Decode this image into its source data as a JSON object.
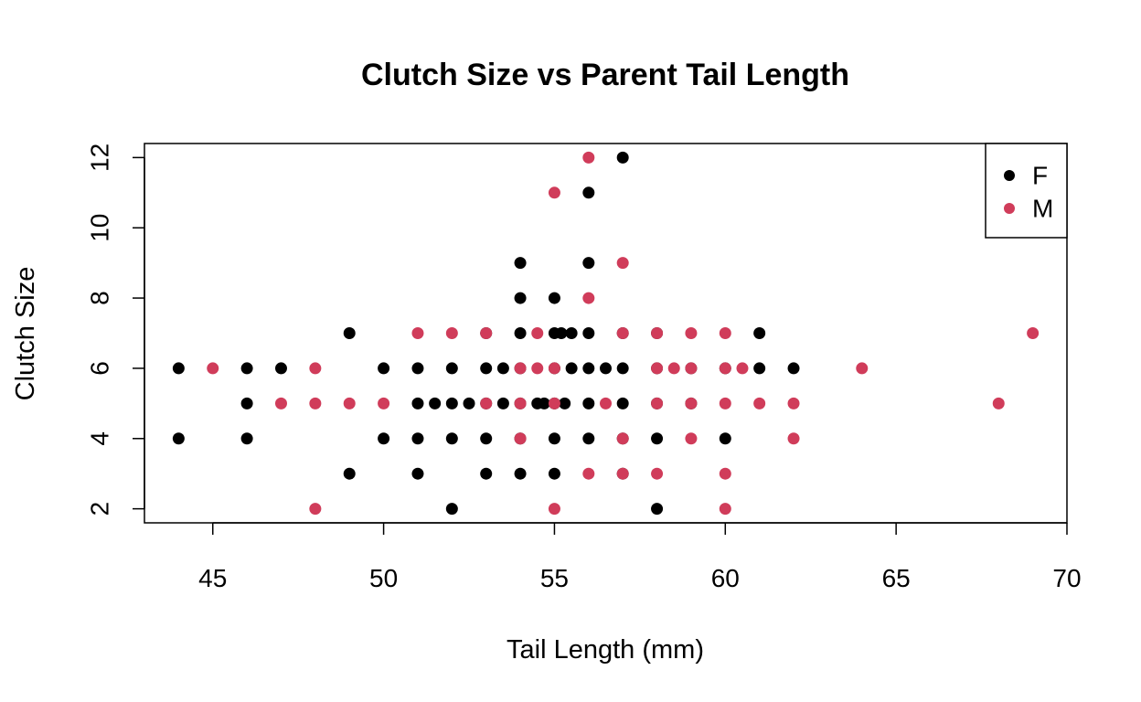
{
  "chart_data": {
    "type": "scatter",
    "title": "Clutch Size vs Parent Tail Length",
    "xlabel": "Tail Length (mm)",
    "ylabel": "Clutch Size",
    "xlim": [
      43,
      70
    ],
    "ylim": [
      1.6,
      12.4
    ],
    "xticks": [
      45,
      50,
      55,
      60,
      65,
      70
    ],
    "yticks": [
      2,
      4,
      6,
      8,
      10,
      12
    ],
    "grid": false,
    "legend_position": "top-right",
    "series": [
      {
        "name": "F",
        "color": "#000000",
        "points": [
          [
            44,
            6
          ],
          [
            44,
            4
          ],
          [
            46,
            6
          ],
          [
            46,
            5
          ],
          [
            46,
            4
          ],
          [
            47,
            6
          ],
          [
            49,
            7
          ],
          [
            49,
            3
          ],
          [
            50,
            6
          ],
          [
            50,
            4
          ],
          [
            51,
            6
          ],
          [
            51,
            5
          ],
          [
            51,
            4
          ],
          [
            51,
            3
          ],
          [
            51.5,
            5
          ],
          [
            52,
            6
          ],
          [
            52,
            5
          ],
          [
            52,
            4
          ],
          [
            52,
            2
          ],
          [
            52.5,
            5
          ],
          [
            53,
            7
          ],
          [
            53,
            6
          ],
          [
            53,
            5
          ],
          [
            53,
            4
          ],
          [
            53,
            3
          ],
          [
            53.5,
            6
          ],
          [
            53.5,
            5
          ],
          [
            54,
            9
          ],
          [
            54,
            8
          ],
          [
            54,
            7
          ],
          [
            54,
            6
          ],
          [
            54,
            5
          ],
          [
            54,
            4
          ],
          [
            54,
            3
          ],
          [
            54.5,
            5
          ],
          [
            54.7,
            5
          ],
          [
            55,
            8
          ],
          [
            55,
            7
          ],
          [
            55,
            6
          ],
          [
            55,
            5
          ],
          [
            55,
            4
          ],
          [
            55,
            3
          ],
          [
            55.2,
            7
          ],
          [
            55.3,
            5
          ],
          [
            55.5,
            7
          ],
          [
            55.5,
            6
          ],
          [
            56,
            11
          ],
          [
            56,
            9
          ],
          [
            56,
            7
          ],
          [
            56,
            6
          ],
          [
            56,
            5
          ],
          [
            56,
            4
          ],
          [
            56.5,
            6
          ],
          [
            57,
            12
          ],
          [
            57,
            7
          ],
          [
            57,
            6
          ],
          [
            57,
            5
          ],
          [
            57,
            4
          ],
          [
            57,
            3
          ],
          [
            58,
            7
          ],
          [
            58,
            6
          ],
          [
            58,
            5
          ],
          [
            58,
            4
          ],
          [
            58,
            2
          ],
          [
            59,
            6
          ],
          [
            59,
            5
          ],
          [
            60,
            6
          ],
          [
            60,
            4
          ],
          [
            61,
            7
          ],
          [
            61,
            6
          ],
          [
            62,
            6
          ]
        ]
      },
      {
        "name": "M",
        "color": "#d03c5a",
        "points": [
          [
            45,
            6
          ],
          [
            47,
            5
          ],
          [
            48,
            6
          ],
          [
            48,
            5
          ],
          [
            48,
            2
          ],
          [
            49,
            5
          ],
          [
            50,
            5
          ],
          [
            51,
            7
          ],
          [
            52,
            7
          ],
          [
            53,
            7
          ],
          [
            53,
            5
          ],
          [
            54,
            6
          ],
          [
            54,
            5
          ],
          [
            54,
            4
          ],
          [
            54.5,
            7
          ],
          [
            54.5,
            6
          ],
          [
            55,
            11
          ],
          [
            55,
            6
          ],
          [
            55,
            5
          ],
          [
            55,
            2
          ],
          [
            56,
            12
          ],
          [
            56,
            8
          ],
          [
            56,
            3
          ],
          [
            56.5,
            5
          ],
          [
            57,
            9
          ],
          [
            57,
            7
          ],
          [
            57,
            4
          ],
          [
            57,
            3
          ],
          [
            58,
            7
          ],
          [
            58,
            6
          ],
          [
            58,
            5
          ],
          [
            58,
            3
          ],
          [
            58.5,
            6
          ],
          [
            59,
            7
          ],
          [
            59,
            6
          ],
          [
            59,
            5
          ],
          [
            59,
            4
          ],
          [
            60,
            7
          ],
          [
            60,
            6
          ],
          [
            60,
            5
          ],
          [
            60,
            3
          ],
          [
            60,
            2
          ],
          [
            60.5,
            6
          ],
          [
            61,
            5
          ],
          [
            62,
            5
          ],
          [
            62,
            4
          ],
          [
            64,
            6
          ],
          [
            68,
            5
          ],
          [
            69,
            7
          ]
        ]
      }
    ]
  }
}
